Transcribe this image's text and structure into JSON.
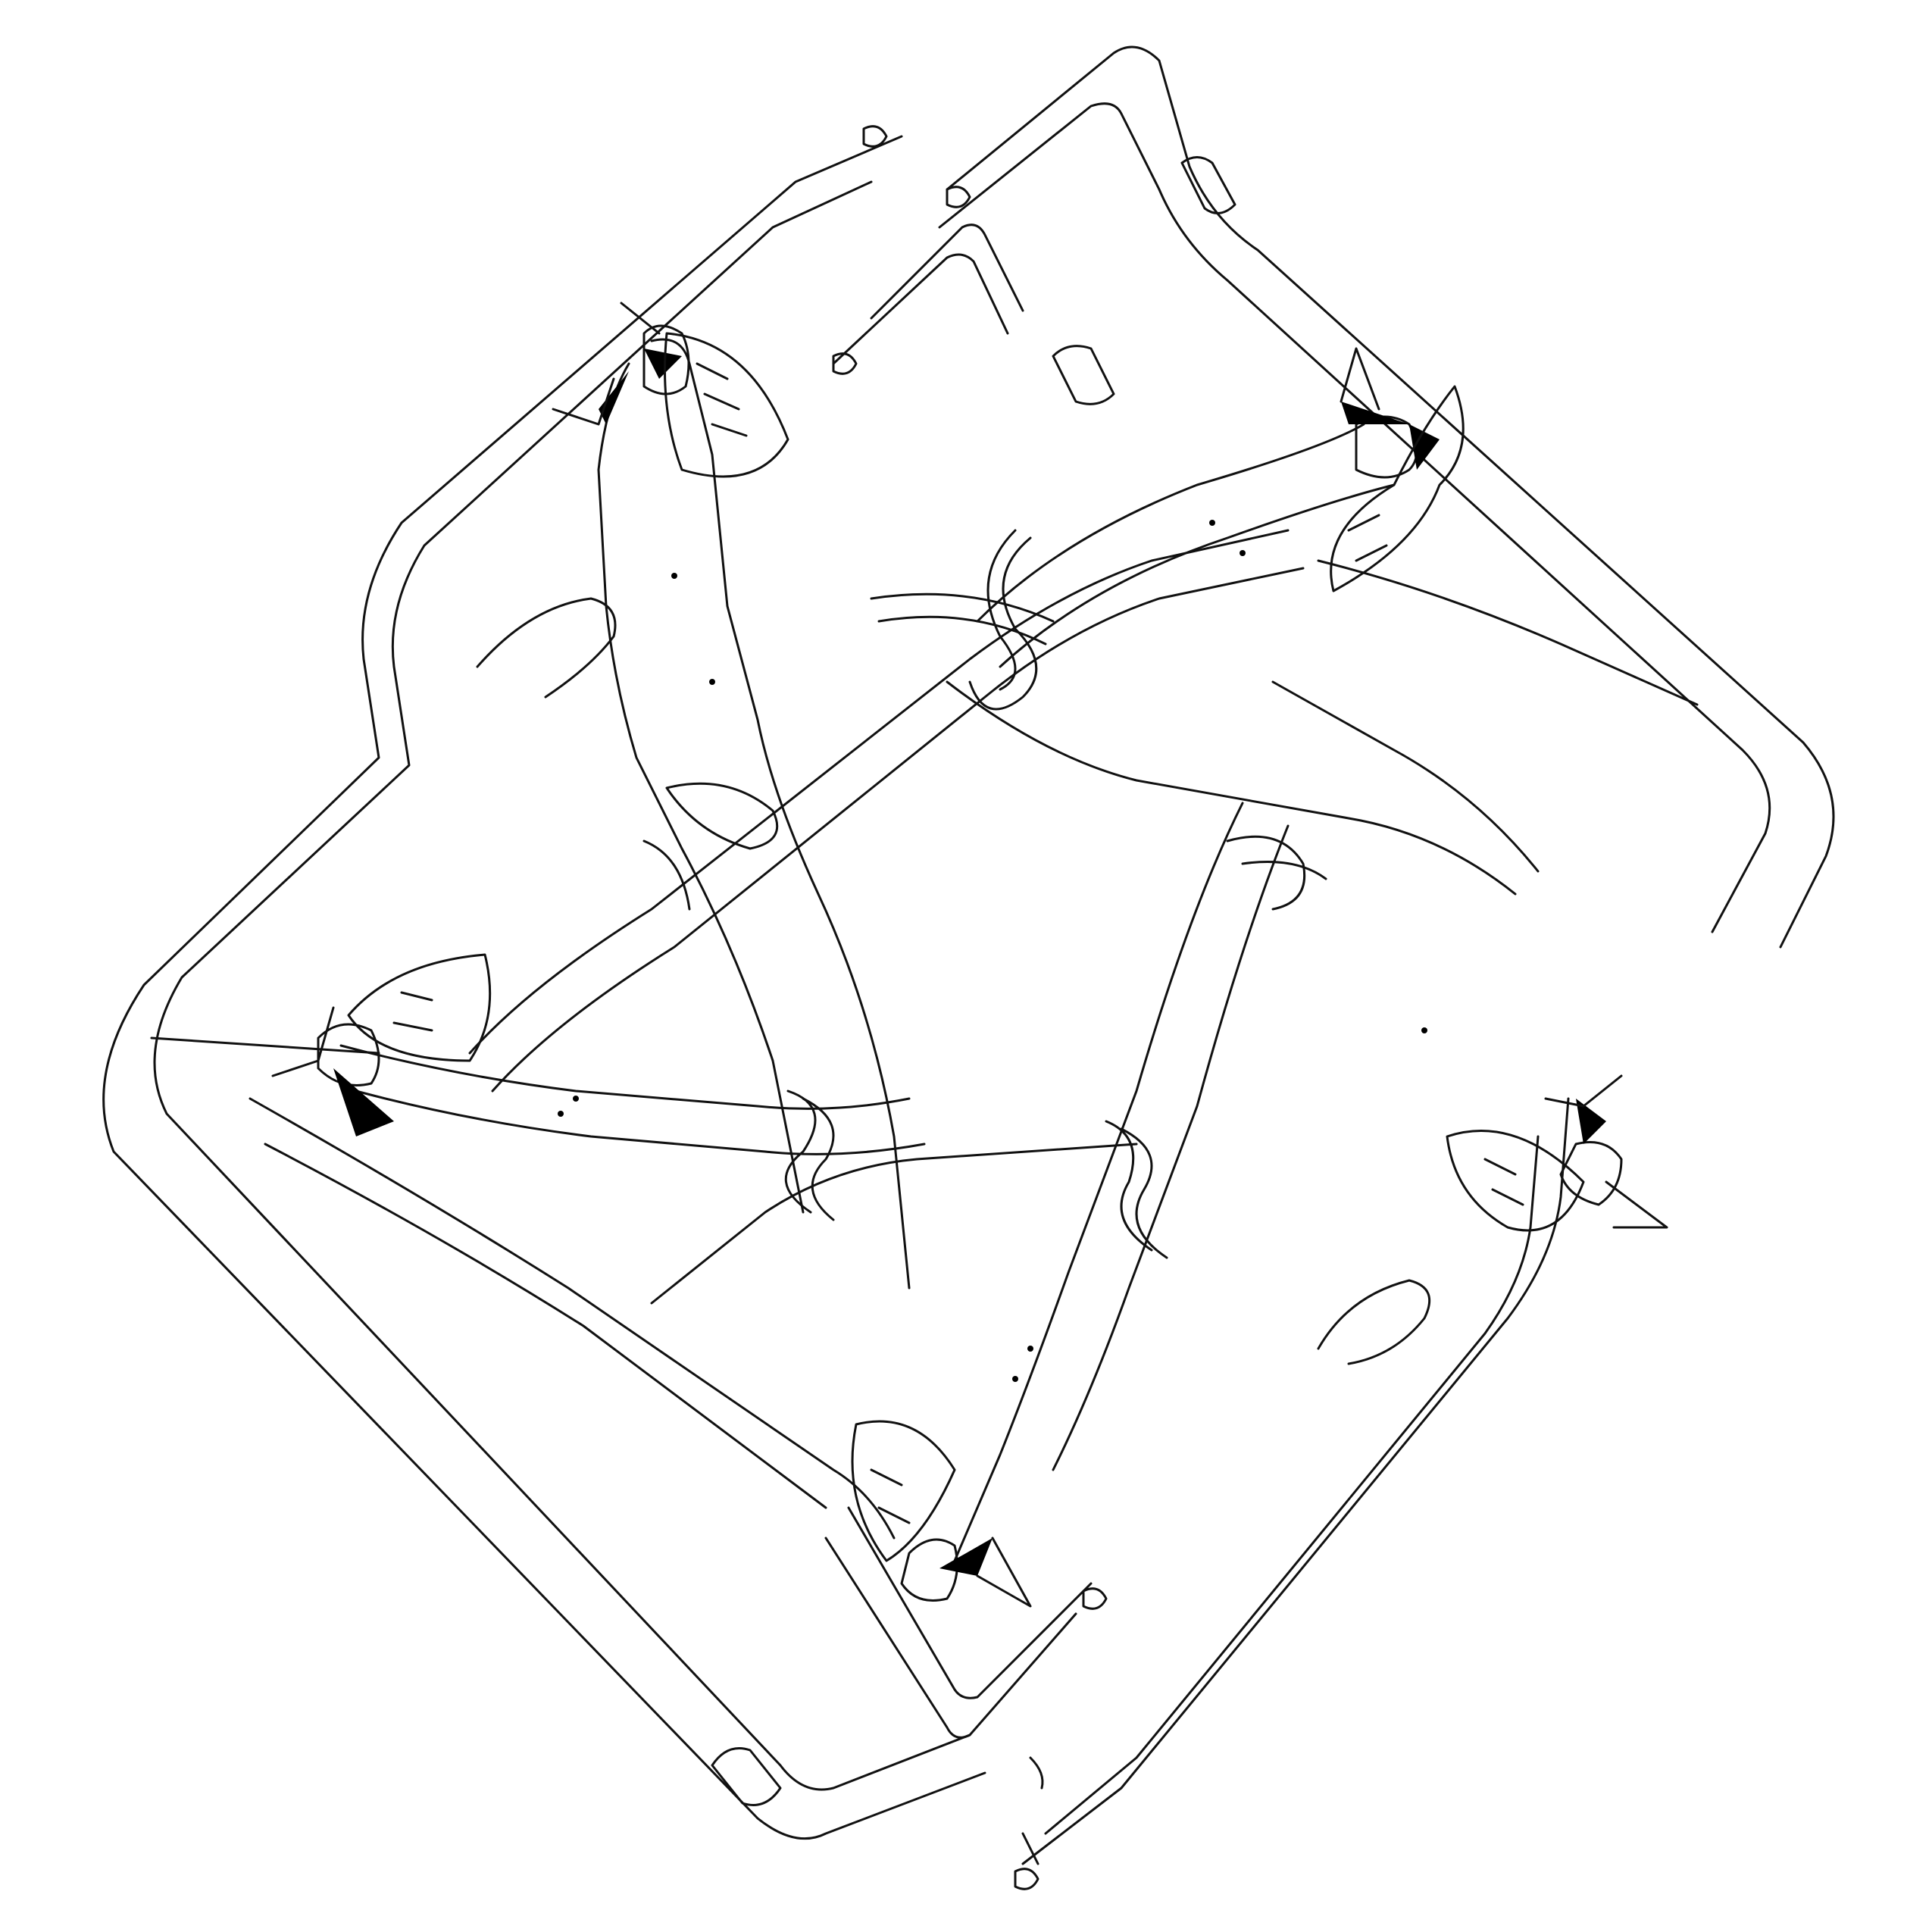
{
  "artwork": {
    "subject": "line-drawing-of-four-elongated-cat-figures-intertwined-with-tails",
    "colors": {
      "background": "#ffffff",
      "line": "#111111",
      "accent_fill": "#000000"
    }
  }
}
